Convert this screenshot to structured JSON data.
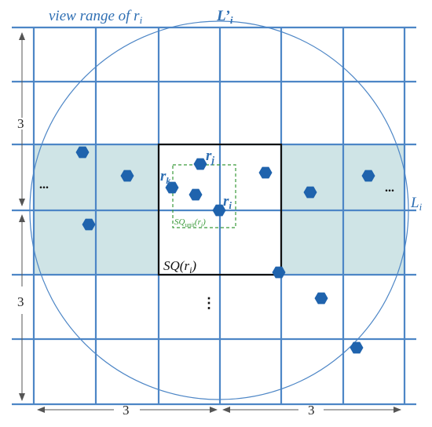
{
  "view_range": {
    "text": "view range of r",
    "sub": "i"
  },
  "line_top": {
    "main": "L’",
    "sub": "i"
  },
  "line_right": {
    "main": "L",
    "sub": "i"
  },
  "dim_left_top": "3",
  "dim_left_bottom": "3",
  "dim_bottom_left": "3",
  "dim_bottom_right": "3",
  "robot_j": {
    "main": "r",
    "sub": "j"
  },
  "robot_k": {
    "main": "r",
    "sub": "k"
  },
  "robot_i": {
    "main": "r",
    "sub": "i"
  },
  "sq_unit": {
    "main": "SQ",
    "sub": "unit",
    "tail_open": "(r",
    "tail_sub": "i",
    "tail_close": ")"
  },
  "sq": {
    "main": "SQ(r",
    "sub": "i",
    "close": ")"
  },
  "ellipsis_left": "...",
  "ellipsis_right": "...",
  "ellipsis_down": "⋮"
}
